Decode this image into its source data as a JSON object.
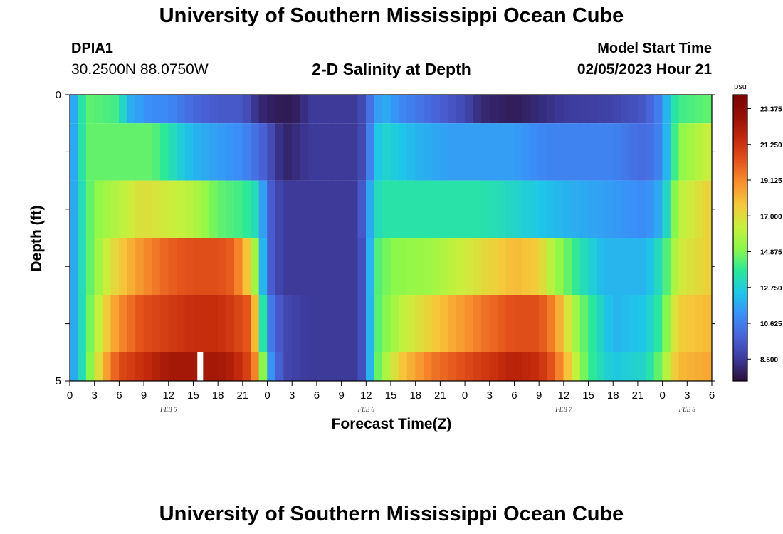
{
  "header": {
    "title": "University of Southern Mississippi Ocean Cube",
    "station_name": "DPIA1",
    "station_coords": "30.2500N  88.0750W",
    "chart_title": "2-D Salinity at Depth",
    "start_label": "Model Start Time",
    "start_value": "02/05/2023 Hour 21"
  },
  "footer": {
    "title": "University of Southern Mississippi Ocean Cube"
  },
  "colorbar": {
    "unit": "psu",
    "labels": [
      "23.375",
      "21.250",
      "19.125",
      "17.000",
      "14.875",
      "12.750",
      "10.625",
      "8.500"
    ],
    "min": 7.2,
    "max": 24.2,
    "colors": [
      "#2a0f3a",
      "#3d3a9a",
      "#4a62d8",
      "#3b8ef8",
      "#1ec6e8",
      "#2be89a",
      "#8bf84a",
      "#c8f03c",
      "#f5c83a",
      "#f8902e",
      "#e4541c",
      "#c42a0c",
      "#961006",
      "#7a0404"
    ]
  },
  "chart_data": {
    "type": "heatmap",
    "xlabel": "Forecast Time(Z)",
    "ylabel": "Depth (ft)",
    "y_tick_labels": [
      "0",
      "5"
    ],
    "ylim": [
      0,
      5
    ],
    "x_tick_labels": [
      "0",
      "3",
      "6",
      "9",
      "12",
      "15",
      "18",
      "21",
      "0",
      "3",
      "6",
      "9",
      "12",
      "15",
      "18",
      "21",
      "0",
      "3",
      "6",
      "9",
      "12",
      "15",
      "18",
      "21",
      "0",
      "3",
      "6"
    ],
    "date_labels": [
      {
        "text": "FEB 5",
        "hour": 12
      },
      {
        "text": "FEB 6",
        "hour": 36
      },
      {
        "text": "FEB 7",
        "hour": 60
      },
      {
        "text": "FEB 8",
        "hour": 75
      }
    ],
    "hours_total": 78,
    "layers": [
      {
        "depth_range": [
          0,
          0.5
        ],
        "anchors": [
          [
            0,
            11
          ],
          [
            1,
            12.5
          ],
          [
            2,
            14.5
          ],
          [
            6,
            14
          ],
          [
            7,
            12
          ],
          [
            10,
            11
          ],
          [
            12,
            11
          ],
          [
            15,
            10
          ],
          [
            18,
            9.5
          ],
          [
            21,
            9.5
          ],
          [
            23,
            8
          ],
          [
            26,
            7.5
          ],
          [
            28,
            7.8
          ],
          [
            29,
            8.5
          ],
          [
            31,
            8.5
          ],
          [
            35,
            8.5
          ],
          [
            36,
            9.5
          ],
          [
            37,
            11
          ],
          [
            38,
            12
          ],
          [
            40,
            11
          ],
          [
            44,
            10
          ],
          [
            46,
            9.5
          ],
          [
            48,
            9
          ],
          [
            50,
            8
          ],
          [
            54,
            7.6
          ],
          [
            58,
            8.2
          ],
          [
            60,
            8.5
          ],
          [
            66,
            8.8
          ],
          [
            70,
            9.5
          ],
          [
            72,
            11
          ],
          [
            73,
            13
          ],
          [
            74,
            14
          ],
          [
            78,
            14.5
          ]
        ]
      },
      {
        "depth_range": [
          0.5,
          1.5
        ],
        "anchors": [
          [
            0,
            11
          ],
          [
            1,
            12.5
          ],
          [
            2,
            14.5
          ],
          [
            10,
            14.5
          ],
          [
            13,
            13
          ],
          [
            15,
            12
          ],
          [
            18,
            11.5
          ],
          [
            21,
            11
          ],
          [
            23,
            10
          ],
          [
            24,
            9.5
          ],
          [
            26,
            7.8
          ],
          [
            28,
            8.2
          ],
          [
            29,
            8.5
          ],
          [
            35,
            8.5
          ],
          [
            36,
            9.5
          ],
          [
            37,
            12
          ],
          [
            38,
            13
          ],
          [
            42,
            12
          ],
          [
            46,
            11.5
          ],
          [
            54,
            11.5
          ],
          [
            58,
            10.8
          ],
          [
            62,
            10.8
          ],
          [
            66,
            10.8
          ],
          [
            70,
            10
          ],
          [
            72,
            11
          ],
          [
            73,
            13
          ],
          [
            74,
            15
          ],
          [
            78,
            16.5
          ]
        ]
      },
      {
        "depth_range": [
          1.5,
          2.5
        ],
        "anchors": [
          [
            0,
            11
          ],
          [
            1,
            12.5
          ],
          [
            2,
            14
          ],
          [
            3,
            15
          ],
          [
            6,
            16
          ],
          [
            9,
            17
          ],
          [
            12,
            16.5
          ],
          [
            15,
            16
          ],
          [
            18,
            14.5
          ],
          [
            21,
            14
          ],
          [
            23,
            13
          ],
          [
            24,
            10
          ],
          [
            26,
            8.5
          ],
          [
            29,
            8.5
          ],
          [
            35,
            8.5
          ],
          [
            36,
            10.5
          ],
          [
            37,
            13
          ],
          [
            38,
            13.5
          ],
          [
            50,
            13.5
          ],
          [
            54,
            13
          ],
          [
            60,
            12
          ],
          [
            65,
            11.5
          ],
          [
            70,
            11
          ],
          [
            72,
            12
          ],
          [
            73,
            14
          ],
          [
            74,
            16
          ],
          [
            78,
            17.5
          ]
        ]
      },
      {
        "depth_range": [
          2.5,
          3.5
        ],
        "anchors": [
          [
            0,
            11
          ],
          [
            1,
            12.5
          ],
          [
            2,
            14
          ],
          [
            4,
            16
          ],
          [
            6,
            17.5
          ],
          [
            9,
            19
          ],
          [
            12,
            20
          ],
          [
            15,
            20.5
          ],
          [
            18,
            20.5
          ],
          [
            20,
            20
          ],
          [
            22,
            17
          ],
          [
            23,
            14
          ],
          [
            24,
            10
          ],
          [
            26,
            8.5
          ],
          [
            29,
            8.5
          ],
          [
            35,
            8.5
          ],
          [
            36,
            10
          ],
          [
            37,
            14
          ],
          [
            39,
            15
          ],
          [
            44,
            15.5
          ],
          [
            50,
            17
          ],
          [
            54,
            18
          ],
          [
            57,
            17.5
          ],
          [
            59,
            15.5
          ],
          [
            62,
            13.5
          ],
          [
            65,
            12
          ],
          [
            70,
            12
          ],
          [
            72,
            13.5
          ],
          [
            73,
            15
          ],
          [
            74,
            16.5
          ],
          [
            78,
            17.5
          ]
        ]
      },
      {
        "depth_range": [
          3.5,
          4.5
        ],
        "anchors": [
          [
            0,
            11
          ],
          [
            1,
            12.5
          ],
          [
            2,
            14
          ],
          [
            4,
            17
          ],
          [
            6,
            19
          ],
          [
            9,
            20.5
          ],
          [
            12,
            21
          ],
          [
            15,
            21.5
          ],
          [
            18,
            21.5
          ],
          [
            20,
            21
          ],
          [
            22,
            20
          ],
          [
            23,
            16
          ],
          [
            24,
            11
          ],
          [
            26,
            9
          ],
          [
            29,
            8.5
          ],
          [
            35,
            8.5
          ],
          [
            36,
            10
          ],
          [
            37,
            14
          ],
          [
            40,
            16
          ],
          [
            44,
            17.5
          ],
          [
            50,
            19.5
          ],
          [
            54,
            20.5
          ],
          [
            57,
            20.5
          ],
          [
            59,
            19
          ],
          [
            61,
            16
          ],
          [
            63,
            14
          ],
          [
            66,
            12
          ],
          [
            70,
            12.5
          ],
          [
            72,
            14
          ],
          [
            73,
            16
          ],
          [
            74,
            17.5
          ],
          [
            78,
            18
          ]
        ]
      },
      {
        "depth_range": [
          4.5,
          5
        ],
        "anchors": [
          [
            0,
            11
          ],
          [
            1,
            12.5
          ],
          [
            2,
            14
          ],
          [
            4,
            18
          ],
          [
            6,
            20.5
          ],
          [
            9,
            21.5
          ],
          [
            12,
            22.5
          ],
          [
            15,
            22.5
          ],
          [
            18,
            22.5
          ],
          [
            20,
            22
          ],
          [
            22,
            20.5
          ],
          [
            23,
            18
          ],
          [
            24,
            12
          ],
          [
            26,
            9
          ],
          [
            29,
            8.5
          ],
          [
            35,
            8.5
          ],
          [
            36,
            10
          ],
          [
            37,
            14
          ],
          [
            40,
            17.5
          ],
          [
            44,
            19.5
          ],
          [
            50,
            21
          ],
          [
            54,
            22
          ],
          [
            57,
            21.5
          ],
          [
            59,
            20
          ],
          [
            61,
            17
          ],
          [
            63,
            14
          ],
          [
            66,
            12.5
          ],
          [
            70,
            13
          ],
          [
            72,
            15
          ],
          [
            73,
            17
          ],
          [
            74,
            18
          ],
          [
            78,
            18.5
          ]
        ]
      }
    ],
    "missing_cell": {
      "depth_range": [
        4.5,
        5
      ],
      "hour_range": [
        15.5,
        16.2
      ]
    }
  }
}
